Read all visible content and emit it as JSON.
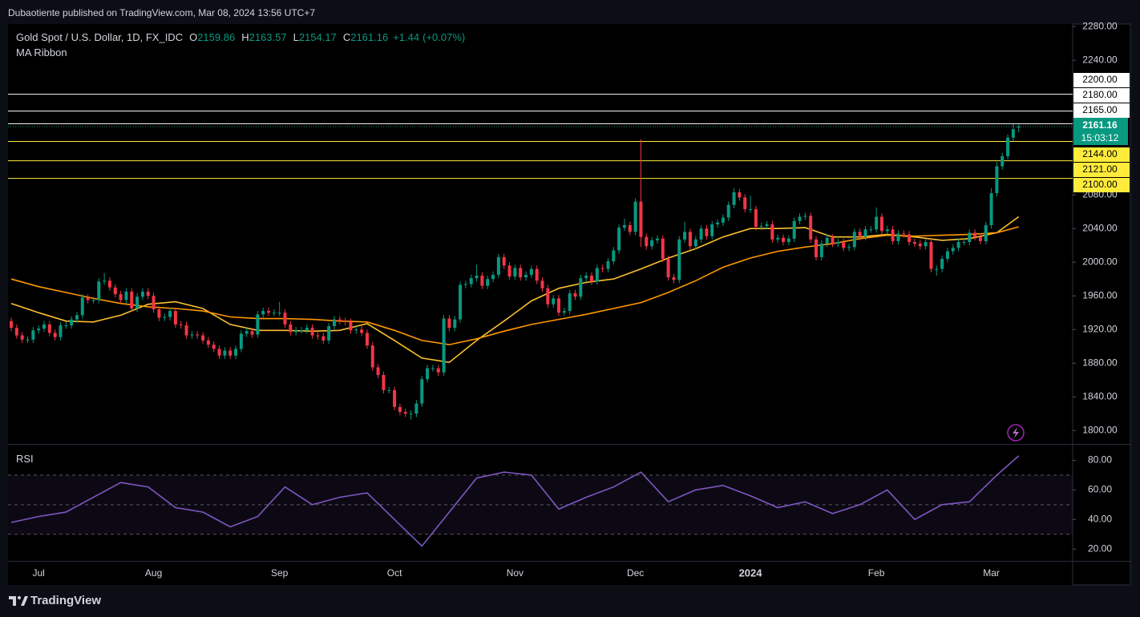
{
  "header": {
    "publisher": "Dubaotiente published on TradingView.com, Mar 08, 2024 13:56 UTC+7"
  },
  "chart_data": {
    "type": "candlestick",
    "title": "Gold Spot / U.S. Dollar, 1D, FX_IDC",
    "ohlc_fields": [
      {
        "key": "O",
        "value": 2159.86
      },
      {
        "key": "H",
        "value": 2163.57
      },
      {
        "key": "L",
        "value": 2154.17
      },
      {
        "key": "C",
        "value": 2161.16
      }
    ],
    "change": {
      "value": 1.44,
      "label": "+1.44"
    },
    "change_pct": {
      "value": 0.07,
      "label": "(+0.07%)"
    },
    "indicator": "MA Ribbon",
    "up_color": "#089981",
    "down_color": "#f23645",
    "candles": [
      [
        1930,
        1934,
        1918,
        1922
      ],
      [
        1922,
        1926,
        1909,
        1913
      ],
      [
        1913,
        1917,
        1904,
        1908
      ],
      [
        1908,
        1912,
        1904,
        1908
      ],
      [
        1908,
        1923,
        1904,
        1919
      ],
      [
        1919,
        1925,
        1915,
        1921
      ],
      [
        1921,
        1930,
        1917,
        1926
      ],
      [
        1926,
        1930,
        1912,
        1916
      ],
      [
        1916,
        1920,
        1907,
        1911
      ],
      [
        1911,
        1929,
        1907,
        1925
      ],
      [
        1925,
        1929,
        1921,
        1925
      ],
      [
        1925,
        1936,
        1921,
        1932
      ],
      [
        1932,
        1941,
        1928,
        1937
      ],
      [
        1937,
        1962,
        1933,
        1958
      ],
      [
        1958,
        1962,
        1951,
        1955
      ],
      [
        1955,
        1959,
        1951,
        1955
      ],
      [
        1955,
        1981,
        1951,
        1977
      ],
      [
        1977,
        1987,
        1973,
        1978
      ],
      [
        1978,
        1982,
        1966,
        1970
      ],
      [
        1970,
        1974,
        1958,
        1962
      ],
      [
        1962,
        1966,
        1951,
        1955
      ],
      [
        1955,
        1969,
        1951,
        1965
      ],
      [
        1965,
        1969,
        1941,
        1945
      ],
      [
        1945,
        1963,
        1941,
        1959
      ],
      [
        1959,
        1969,
        1955,
        1965
      ],
      [
        1965,
        1969,
        1956,
        1960
      ],
      [
        1960,
        1964,
        1940,
        1944
      ],
      [
        1944,
        1948,
        1930,
        1934
      ],
      [
        1934,
        1939,
        1930,
        1935
      ],
      [
        1935,
        1946,
        1931,
        1942
      ],
      [
        1942,
        1946,
        1922,
        1926
      ],
      [
        1926,
        1930,
        1921,
        1925
      ],
      [
        1925,
        1929,
        1909,
        1913
      ],
      [
        1913,
        1918,
        1909,
        1914
      ],
      [
        1914,
        1918,
        1909,
        1913
      ],
      [
        1913,
        1917,
        1903,
        1907
      ],
      [
        1907,
        1911,
        1898,
        1902
      ],
      [
        1902,
        1906,
        1893,
        1897
      ],
      [
        1897,
        1901,
        1885,
        1889
      ],
      [
        1889,
        1899,
        1885,
        1895
      ],
      [
        1895,
        1899,
        1885,
        1889
      ],
      [
        1889,
        1901,
        1885,
        1897
      ],
      [
        1897,
        1919,
        1893,
        1915
      ],
      [
        1915,
        1922,
        1911,
        1918
      ],
      [
        1918,
        1922,
        1910,
        1914
      ],
      [
        1914,
        1942,
        1910,
        1938
      ],
      [
        1938,
        1946,
        1934,
        1942
      ],
      [
        1942,
        1946,
        1936,
        1940
      ],
      [
        1940,
        1944,
        1936,
        1940
      ],
      [
        1940,
        1953,
        1936,
        1940
      ],
      [
        1940,
        1944,
        1922,
        1926
      ],
      [
        1926,
        1930,
        1913,
        1917
      ],
      [
        1917,
        1923,
        1913,
        1919
      ],
      [
        1919,
        1923,
        1915,
        1919
      ],
      [
        1919,
        1926,
        1915,
        1922
      ],
      [
        1922,
        1926,
        1909,
        1913
      ],
      [
        1913,
        1917,
        1908,
        1912
      ],
      [
        1912,
        1916,
        1903,
        1907
      ],
      [
        1907,
        1928,
        1903,
        1924
      ],
      [
        1924,
        1936,
        1920,
        1932
      ],
      [
        1932,
        1936,
        1926,
        1930
      ],
      [
        1930,
        1934,
        1925,
        1929
      ],
      [
        1929,
        1933,
        1915,
        1919
      ],
      [
        1919,
        1924,
        1915,
        1920
      ],
      [
        1920,
        1924,
        1912,
        1916
      ],
      [
        1916,
        1920,
        1897,
        1901
      ],
      [
        1901,
        1905,
        1871,
        1875
      ],
      [
        1875,
        1879,
        1862,
        1866
      ],
      [
        1866,
        1870,
        1844,
        1848
      ],
      [
        1848,
        1852,
        1844,
        1848
      ],
      [
        1848,
        1852,
        1824,
        1828
      ],
      [
        1828,
        1832,
        1818,
        1822
      ],
      [
        1822,
        1826,
        1816,
        1820
      ],
      [
        1820,
        1824,
        1813,
        1820
      ],
      [
        1820,
        1836,
        1816,
        1832
      ],
      [
        1832,
        1865,
        1828,
        1861
      ],
      [
        1861,
        1878,
        1857,
        1874
      ],
      [
        1874,
        1878,
        1870,
        1874
      ],
      [
        1874,
        1878,
        1865,
        1869
      ],
      [
        1869,
        1937,
        1865,
        1933
      ],
      [
        1933,
        1937,
        1918,
        1922
      ],
      [
        1922,
        1936,
        1918,
        1932
      ],
      [
        1932,
        1977,
        1928,
        1973
      ],
      [
        1973,
        1978,
        1969,
        1974
      ],
      [
        1974,
        1985,
        1970,
        1981
      ],
      [
        1981,
        1997,
        1977,
        1984
      ],
      [
        1984,
        1988,
        1968,
        1972
      ],
      [
        1972,
        1984,
        1968,
        1980
      ],
      [
        1980,
        1989,
        1976,
        1985
      ],
      [
        1985,
        2010,
        1981,
        2006
      ],
      [
        2006,
        2010,
        1992,
        1996
      ],
      [
        1996,
        2000,
        1979,
        1983
      ],
      [
        1983,
        1997,
        1979,
        1993
      ],
      [
        1993,
        1997,
        1978,
        1982
      ],
      [
        1982,
        1989,
        1978,
        1985
      ],
      [
        1985,
        1996,
        1981,
        1992
      ],
      [
        1992,
        1996,
        1974,
        1978
      ],
      [
        1978,
        1982,
        1965,
        1969
      ],
      [
        1969,
        1973,
        1946,
        1950
      ],
      [
        1950,
        1961,
        1946,
        1957
      ],
      [
        1957,
        1961,
        1936,
        1940
      ],
      [
        1940,
        1946,
        1936,
        1942
      ],
      [
        1942,
        1967,
        1938,
        1963
      ],
      [
        1963,
        1967,
        1955,
        1959
      ],
      [
        1959,
        1985,
        1955,
        1981
      ],
      [
        1981,
        1988,
        1977,
        1984
      ],
      [
        1984,
        1988,
        1973,
        1977
      ],
      [
        1977,
        1997,
        1973,
        1993
      ],
      [
        1993,
        1997,
        1988,
        1992
      ],
      [
        1992,
        2005,
        1988,
        2001
      ],
      [
        2001,
        2018,
        1997,
        2014
      ],
      [
        2014,
        2045,
        2010,
        2041
      ],
      [
        2041,
        2052,
        2037,
        2044
      ],
      [
        2044,
        2048,
        2032,
        2036
      ],
      [
        2036,
        2076,
        2032,
        2072
      ],
      [
        2072,
        2146,
        2018,
        2030
      ],
      [
        2030,
        2034,
        2015,
        2019
      ],
      [
        2019,
        2030,
        2015,
        2026
      ],
      [
        2026,
        2032,
        2022,
        2028
      ],
      [
        2028,
        2032,
        2000,
        2004
      ],
      [
        2004,
        2008,
        1978,
        1982
      ],
      [
        1982,
        1986,
        1975,
        1979
      ],
      [
        1979,
        2031,
        1975,
        2027
      ],
      [
        2027,
        2048,
        2023,
        2036
      ],
      [
        2036,
        2040,
        2015,
        2019
      ],
      [
        2019,
        2031,
        2015,
        2027
      ],
      [
        2027,
        2044,
        2023,
        2040
      ],
      [
        2040,
        2044,
        2027,
        2031
      ],
      [
        2031,
        2049,
        2027,
        2045
      ],
      [
        2045,
        2051,
        2041,
        2047
      ],
      [
        2047,
        2057,
        2043,
        2053
      ],
      [
        2053,
        2072,
        2049,
        2068
      ],
      [
        2068,
        2088,
        2064,
        2083
      ],
      [
        2083,
        2087,
        2073,
        2077
      ],
      [
        2077,
        2081,
        2059,
        2063
      ],
      [
        2063,
        2079,
        2059,
        2063
      ],
      [
        2063,
        2067,
        2038,
        2042
      ],
      [
        2042,
        2047,
        2038,
        2043
      ],
      [
        2043,
        2049,
        2039,
        2045
      ],
      [
        2045,
        2049,
        2023,
        2027
      ],
      [
        2027,
        2033,
        2023,
        2029
      ],
      [
        2029,
        2033,
        2020,
        2024
      ],
      [
        2024,
        2032,
        2020,
        2028
      ],
      [
        2028,
        2053,
        2024,
        2049
      ],
      [
        2049,
        2058,
        2045,
        2054
      ],
      [
        2054,
        2059,
        2050,
        2055
      ],
      [
        2055,
        2059,
        2023,
        2027
      ],
      [
        2027,
        2031,
        2002,
        2006
      ],
      [
        2006,
        2026,
        2002,
        2022
      ],
      [
        2022,
        2033,
        2018,
        2029
      ],
      [
        2029,
        2033,
        2018,
        2022
      ],
      [
        2022,
        2028,
        2018,
        2024
      ],
      [
        2024,
        2028,
        2013,
        2017
      ],
      [
        2017,
        2022,
        2013,
        2018
      ],
      [
        2018,
        2040,
        2014,
        2036
      ],
      [
        2036,
        2040,
        2026,
        2030
      ],
      [
        2030,
        2043,
        2026,
        2039
      ],
      [
        2039,
        2043,
        2035,
        2039
      ],
      [
        2039,
        2065,
        2035,
        2054
      ],
      [
        2054,
        2058,
        2033,
        2037
      ],
      [
        2037,
        2043,
        2033,
        2039
      ],
      [
        2039,
        2043,
        2021,
        2025
      ],
      [
        2025,
        2038,
        2021,
        2034
      ],
      [
        2034,
        2038,
        2029,
        2033
      ],
      [
        2033,
        2037,
        2020,
        2024
      ],
      [
        2024,
        2028,
        2018,
        2022
      ],
      [
        2022,
        2026,
        2015,
        2019
      ],
      [
        2019,
        2028,
        2015,
        2024
      ],
      [
        2024,
        2028,
        1988,
        1992
      ],
      [
        1992,
        1996,
        1984,
        1992
      ],
      [
        1992,
        2008,
        1988,
        2004
      ],
      [
        2004,
        2017,
        2000,
        2013
      ],
      [
        2013,
        2021,
        2009,
        2017
      ],
      [
        2017,
        2028,
        2013,
        2024
      ],
      [
        2024,
        2028,
        2020,
        2024
      ],
      [
        2024,
        2039,
        2020,
        2035
      ],
      [
        2035,
        2039,
        2026,
        2030
      ],
      [
        2030,
        2034,
        2021,
        2025
      ],
      [
        2025,
        2048,
        2021,
        2044
      ],
      [
        2044,
        2088,
        2040,
        2082
      ],
      [
        2082,
        2119,
        2078,
        2114
      ],
      [
        2114,
        2130,
        2110,
        2126
      ],
      [
        2126,
        2152,
        2122,
        2148
      ],
      [
        2148,
        2164,
        2144,
        2158
      ],
      [
        2159.86,
        2163.57,
        2154.17,
        2161.16
      ]
    ],
    "x_labels": [
      {
        "index": 5,
        "label": "Jul"
      },
      {
        "index": 26,
        "label": "Aug"
      },
      {
        "index": 49,
        "label": "Sep"
      },
      {
        "index": 70,
        "label": "Oct"
      },
      {
        "index": 92,
        "label": "Nov"
      },
      {
        "index": 114,
        "label": "Dec"
      },
      {
        "index": 135,
        "label": "2024",
        "bold": true
      },
      {
        "index": 158,
        "label": "Feb"
      },
      {
        "index": 179,
        "label": "Mar"
      }
    ],
    "ylim": [
      1785,
      2283
    ],
    "yticks": [
      {
        "value": 2280,
        "label": "2280.00"
      },
      {
        "value": 2240,
        "label": "2240.00"
      },
      {
        "value": 2080,
        "label": "2080.00"
      },
      {
        "value": 2040,
        "label": "2040.00"
      },
      {
        "value": 2000,
        "label": "2000.00"
      },
      {
        "value": 1960,
        "label": "1960.00"
      },
      {
        "value": 1920,
        "label": "1920.00"
      },
      {
        "value": 1880,
        "label": "1880.00"
      },
      {
        "value": 1840,
        "label": "1840.00"
      },
      {
        "value": 1800,
        "label": "1800.00"
      }
    ],
    "ma_x": [
      0,
      5,
      10,
      15,
      20,
      25,
      30,
      35,
      40,
      45,
      50,
      55,
      60,
      65,
      70,
      75,
      80,
      85,
      90,
      95,
      100,
      105,
      110,
      115,
      120,
      125,
      130,
      135,
      140,
      145,
      150,
      155,
      160,
      165,
      170,
      175,
      180,
      184
    ],
    "series": [
      {
        "color": "#fbc02d",
        "values": [
          1951,
          1940,
          1930,
          1929,
          1937,
          1950,
          1953,
          1945,
          1926,
          1919,
          1919,
          1918,
          1919,
          1927,
          1907,
          1886,
          1881,
          1907,
          1930,
          1954,
          1969,
          1976,
          1980,
          1992,
          2005,
          2016,
          2030,
          2040,
          2040,
          2041,
          2030,
          2030,
          2033,
          2030,
          2026,
          2028,
          2035,
          2054
        ]
      },
      {
        "color": "#ff9800",
        "values": [
          1980,
          1971,
          1964,
          1957,
          1951,
          1947,
          1945,
          1942,
          1935,
          1933,
          1933,
          1932,
          1930,
          1929,
          1919,
          1907,
          1902,
          1909,
          1918,
          1926,
          1932,
          1938,
          1945,
          1952,
          1964,
          1978,
          1994,
          2005,
          2013,
          2018,
          2022,
          2028,
          2032,
          2031,
          2032,
          2033,
          2035,
          2042
        ]
      }
    ],
    "levels": [
      {
        "value": 2200,
        "label": "2200.00",
        "color": "#ffffff"
      },
      {
        "value": 2180,
        "label": "2180.00",
        "color": "#ffffff"
      },
      {
        "value": 2165,
        "label": "2165.00",
        "color": "#ffffff"
      },
      {
        "value": 2144,
        "label": "2144.00",
        "color": "#ffeb3b"
      },
      {
        "value": 2121,
        "label": "2121.00",
        "color": "#ffeb3b"
      },
      {
        "value": 2100,
        "label": "2100.00",
        "color": "#ffeb3b"
      }
    ],
    "countdown": "15:03:12",
    "rsi": {
      "title": "RSI",
      "color": "#7e57c2",
      "x": [
        0,
        5,
        10,
        15,
        20,
        25,
        30,
        35,
        40,
        45,
        50,
        55,
        60,
        65,
        70,
        75,
        80,
        85,
        90,
        95,
        100,
        105,
        110,
        115,
        120,
        125,
        130,
        135,
        140,
        145,
        150,
        155,
        160,
        165,
        170,
        175,
        180,
        184
      ],
      "values": [
        38,
        42,
        45,
        55,
        65,
        62,
        48,
        45,
        35,
        42,
        62,
        50,
        55,
        58,
        40,
        22,
        45,
        68,
        72,
        70,
        47,
        55,
        62,
        72,
        52,
        60,
        63,
        56,
        48,
        52,
        44,
        50,
        60,
        40,
        50,
        52,
        70,
        83
      ],
      "ylim": [
        12,
        90
      ],
      "yticks": [
        {
          "value": 80,
          "label": "80.00"
        },
        {
          "value": 60,
          "label": "60.00"
        },
        {
          "value": 40,
          "label": "40.00"
        },
        {
          "value": 20,
          "label": "20.00"
        }
      ],
      "bands": [
        70,
        50,
        30
      ]
    }
  },
  "footer": {
    "brand": "TradingView"
  }
}
